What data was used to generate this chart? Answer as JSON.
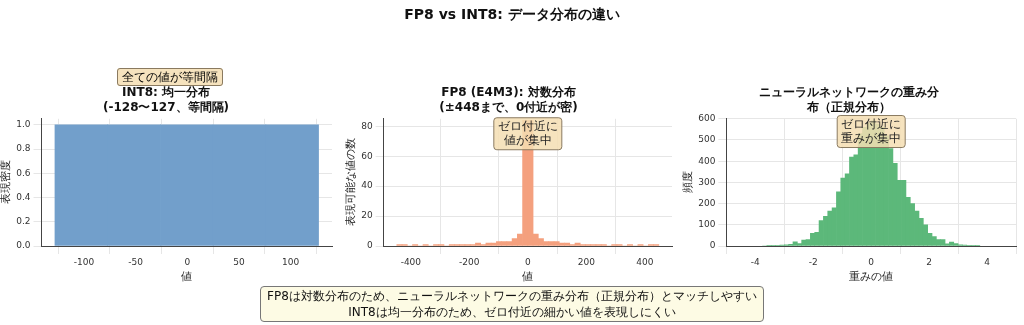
{
  "chart_data": [
    {
      "type": "histogram",
      "title": "INT8: 均一分布\n(-128〜127、等間隔)",
      "xlabel": "値",
      "ylabel": "表現密度",
      "bins": [
        -128,
        -77,
        -26,
        25,
        76,
        127
      ],
      "values": [
        1.0,
        1.0,
        1.0,
        1.0,
        1.0
      ],
      "color": "#729fcb",
      "xlim": [
        -141,
        140
      ],
      "xticks": [
        -100,
        -50,
        0,
        50,
        100
      ],
      "ylim": [
        0,
        1.05
      ],
      "yticks": [
        {
          "value": 0,
          "label": "0.0"
        },
        0.2,
        0.4,
        0.6,
        0.8,
        {
          "value": 1,
          "label": "1.0"
        }
      ],
      "grid": true,
      "annotations": [
        "全ての値が等間隔"
      ]
    },
    {
      "type": "histogram",
      "title": "FP8 (E4M3): 対数分布\n(±448まで、0付近が密)",
      "xlabel": "値",
      "ylabel": "表現可能な値の数",
      "bins": [
        -448,
        -430.08,
        -412.16,
        -394.24,
        -376.32,
        -358.4,
        -340.48,
        -322.56,
        -304.64,
        -286.72,
        -268.8,
        -250.88,
        -232.96,
        -215.04,
        -197.12,
        -179.2,
        -161.28,
        -143.36,
        -125.44,
        -107.52,
        -89.6,
        -71.68,
        -53.76,
        -35.84,
        -17.92,
        0,
        17.92,
        35.84,
        53.76,
        71.68,
        89.6,
        107.52,
        125.44,
        143.36,
        161.28,
        179.2,
        197.12,
        215.04,
        232.96,
        250.88,
        268.8,
        286.72,
        304.64,
        322.56,
        340.48,
        358.4,
        376.32,
        394.24,
        412.16,
        430.08,
        448
      ],
      "values": [
        1,
        1,
        0,
        1,
        0,
        1,
        0,
        1,
        1,
        0,
        1,
        1,
        1,
        1,
        1,
        2,
        1,
        2,
        2,
        3,
        3,
        3,
        5,
        8,
        84,
        84,
        8,
        5,
        3,
        3,
        3,
        2,
        2,
        1,
        2,
        1,
        1,
        1,
        1,
        1,
        0,
        1,
        1,
        0,
        1,
        0,
        1,
        0,
        1,
        1
      ],
      "color": "#f4a07e",
      "xlim": [
        -493,
        493
      ],
      "xticks": [
        -400,
        -200,
        0,
        200,
        400
      ],
      "ylim": [
        0,
        85
      ],
      "yticks": [
        0,
        20,
        40,
        60,
        80
      ],
      "grid": true,
      "annotations": [
        {
          "text": "ゼロ付近に値が集中",
          "x": 0,
          "y": 75
        }
      ]
    },
    {
      "type": "histogram",
      "title": "ニューラルネットワークの重み分布（正規分布）",
      "xlabel": "重みの値",
      "ylabel": "頻度",
      "bins": [
        -3.75,
        -3.6,
        -3.45,
        -3.3,
        -3.15,
        -3.0,
        -2.85,
        -2.7,
        -2.55,
        -2.4,
        -2.25,
        -2.1,
        -1.95,
        -1.8,
        -1.65,
        -1.5,
        -1.35,
        -1.2,
        -1.05,
        -0.9,
        -0.75,
        -0.6,
        -0.45,
        -0.3,
        -0.15,
        0,
        0.15,
        0.3,
        0.45,
        0.6,
        0.75,
        0.9,
        1.05,
        1.2,
        1.35,
        1.5,
        1.65,
        1.8,
        1.95,
        2.1,
        2.25,
        2.4,
        2.55,
        2.7,
        2.85,
        3.0,
        3.15,
        3.3,
        3.45,
        3.6,
        3.75
      ],
      "values": [
        0,
        1,
        2,
        3,
        4,
        5,
        8,
        20,
        12,
        28,
        30,
        60,
        65,
        120,
        140,
        165,
        180,
        255,
        320,
        340,
        420,
        430,
        530,
        560,
        580,
        590,
        575,
        560,
        520,
        460,
        390,
        310,
        310,
        230,
        200,
        165,
        130,
        100,
        60,
        45,
        30,
        30,
        10,
        18,
        12,
        6,
        4,
        3,
        2,
        1
      ],
      "color": "#5cb87a",
      "xlim": [
        -5,
        5
      ],
      "xticks": [
        -4,
        -2,
        0,
        2,
        4
      ],
      "ylim": [
        0,
        600
      ],
      "yticks": [
        0,
        100,
        200,
        300,
        400,
        500,
        600
      ],
      "grid": true,
      "annotations": [
        {
          "text": "ゼロ付近に重みが集中",
          "x": 0,
          "y": 540
        }
      ]
    },
    {
      "type": "other",
      "title": "FP8 vs INT8: データ分布の違い",
      "annotations": [
        "FP8は対数分布のため、ニューラルネットワークの重み分布（正規分布）とマッチしやすい",
        "INT8は均一分布のため、ゼロ付近の細かい値を表現しにくい"
      ]
    }
  ]
}
